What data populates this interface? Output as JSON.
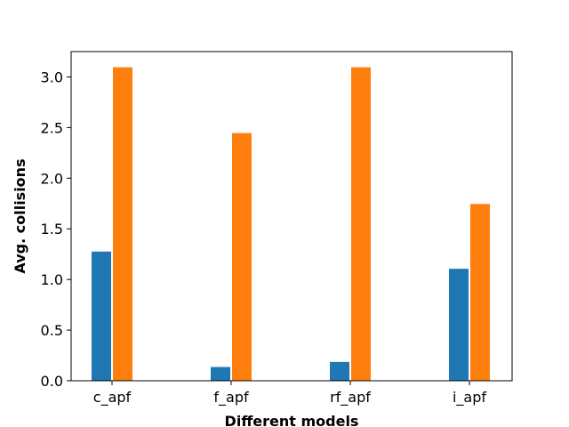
{
  "chart_data": {
    "type": "bar",
    "title": "",
    "xlabel": "Different models",
    "ylabel": "Avg. collisions",
    "categories": [
      "c_apf",
      "f_apf",
      "rf_apf",
      "i_apf"
    ],
    "series": [
      {
        "values": [
          1.28,
          0.14,
          0.19,
          1.11
        ],
        "color": "#1f77b4"
      },
      {
        "values": [
          3.1,
          2.45,
          3.1,
          1.75
        ],
        "color": "#ff7f0e"
      }
    ],
    "ylim": [
      0,
      3.25
    ],
    "yticks": [
      "0.0",
      "0.5",
      "1.0",
      "1.5",
      "2.0",
      "2.5",
      "3.0"
    ],
    "grid": false,
    "legend": "none"
  }
}
